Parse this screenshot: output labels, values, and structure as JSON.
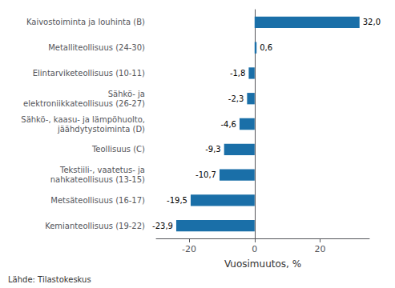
{
  "chart_data": {
    "type": "bar",
    "orientation": "horizontal",
    "categories": [
      "Kemianteollisuus (19-22)",
      "Metsäteollisuus (16-17)",
      "Tekstiili-, vaatetus- ja\nnahkateollisuus (13-15)",
      "Teollisuus (C)",
      "Sähkö-, kaasu- ja lämpöhuolto,\njäähdytystoiminta (D)",
      "Sähkö- ja\nelektroniikkateollisuus (26-27)",
      "Elintarviketeollisuus (10-11)",
      "Metalliteollisuus (24-30)",
      "Kaivostoiminta ja louhinta (B)"
    ],
    "values": [
      -23.9,
      -19.5,
      -10.7,
      -9.3,
      -4.6,
      -2.3,
      -1.8,
      0.6,
      32.0
    ],
    "value_labels": [
      "-23,9",
      "-19,5",
      "-10,7",
      "-9,3",
      "-4,6",
      "-2,3",
      "-1,8",
      "0,6",
      "32,0"
    ],
    "data_labels": true,
    "color": "#1a6fa8",
    "xlabel": "Vuosimuutos, %",
    "xlim": [
      -30,
      35
    ],
    "xticks": [
      -20,
      0,
      20
    ],
    "grid": false,
    "annotations": [
      "Lähde: Tilastokeskus"
    ]
  }
}
